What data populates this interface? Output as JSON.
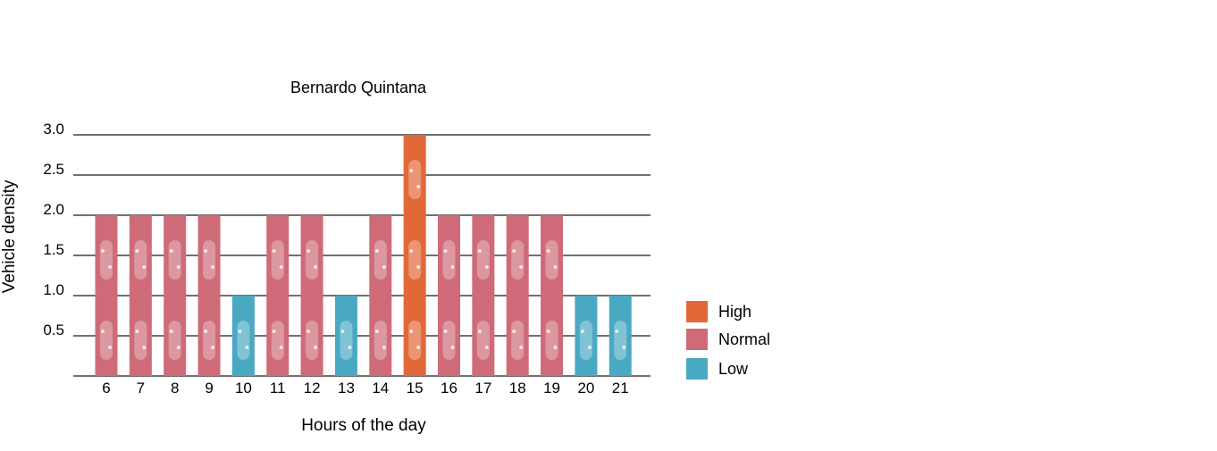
{
  "chart_data": {
    "type": "bar",
    "title": "Bernardo Quintana",
    "xlabel": "Hours of the day",
    "ylabel": "Vehicle density",
    "ylim": [
      0,
      3.0
    ],
    "yticks": [
      "0.5",
      "1.0",
      "1.5",
      "2.0",
      "2.5",
      "3.0"
    ],
    "categories": [
      "6",
      "7",
      "8",
      "9",
      "10",
      "11",
      "12",
      "13",
      "14",
      "15",
      "16",
      "17",
      "18",
      "19",
      "20",
      "21"
    ],
    "values": [
      2.0,
      2.0,
      2.0,
      2.0,
      1.0,
      2.0,
      2.0,
      1.0,
      2.0,
      3.0,
      2.0,
      2.0,
      2.0,
      2.0,
      1.0,
      1.0
    ],
    "levels": [
      "Normal",
      "Normal",
      "Normal",
      "Normal",
      "Low",
      "Normal",
      "Normal",
      "Low",
      "Normal",
      "High",
      "Normal",
      "Normal",
      "Normal",
      "Normal",
      "Low",
      "Low"
    ],
    "grid": true,
    "legend_position": "right",
    "legend": [
      {
        "label": "High",
        "color": "#e2683a"
      },
      {
        "label": "Normal",
        "color": "#cf6b78"
      },
      {
        "label": "Low",
        "color": "#4aa9c2"
      }
    ]
  }
}
